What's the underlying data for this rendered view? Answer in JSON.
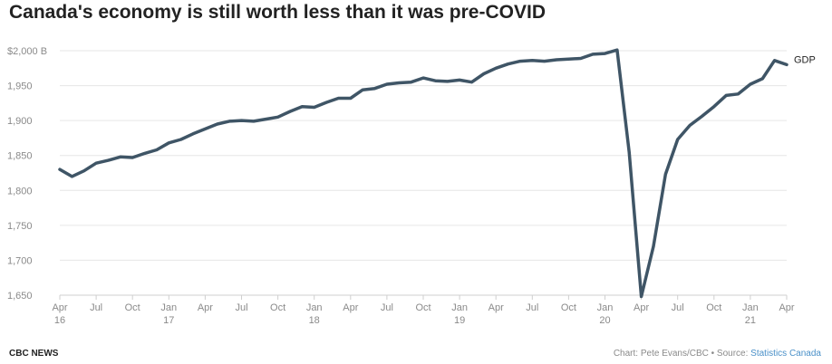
{
  "title": "Canada's economy is still worth less than it was pre-COVID",
  "footer": {
    "brand": "CBC NEWS",
    "credit": "Chart: Pete Evans/CBC • Source: ",
    "source": "Statistics Canada"
  },
  "colors": {
    "line": "#3f5566",
    "grid": "#e6e6e6",
    "axis": "#cfcfcf",
    "tick_text": "#8a8a8a",
    "source_link": "#4a90c8"
  },
  "chart_data": {
    "type": "line",
    "title": "Canada's economy is still worth less than it was pre-COVID",
    "xlabel": "",
    "ylabel": "",
    "ylim": [
      1650,
      2000
    ],
    "yticks": [
      {
        "value": 2000,
        "label": "$2,000 B"
      },
      {
        "value": 1950,
        "label": "1,950"
      },
      {
        "value": 1900,
        "label": "1,900"
      },
      {
        "value": 1850,
        "label": "1,850"
      },
      {
        "value": 1800,
        "label": "1,800"
      },
      {
        "value": 1750,
        "label": "1,750"
      },
      {
        "value": 1700,
        "label": "1,700"
      },
      {
        "value": 1650,
        "label": "1,650"
      }
    ],
    "xlim": [
      "2016-04",
      "2021-04"
    ],
    "xticks": [
      {
        "date": "2016-04",
        "label": "Apr",
        "year": "16"
      },
      {
        "date": "2016-07",
        "label": "Jul",
        "year": ""
      },
      {
        "date": "2016-10",
        "label": "Oct",
        "year": ""
      },
      {
        "date": "2017-01",
        "label": "Jan",
        "year": "17"
      },
      {
        "date": "2017-04",
        "label": "Apr",
        "year": ""
      },
      {
        "date": "2017-07",
        "label": "Jul",
        "year": ""
      },
      {
        "date": "2017-10",
        "label": "Oct",
        "year": ""
      },
      {
        "date": "2018-01",
        "label": "Jan",
        "year": "18"
      },
      {
        "date": "2018-04",
        "label": "Apr",
        "year": ""
      },
      {
        "date": "2018-07",
        "label": "Jul",
        "year": ""
      },
      {
        "date": "2018-10",
        "label": "Oct",
        "year": ""
      },
      {
        "date": "2019-01",
        "label": "Jan",
        "year": "19"
      },
      {
        "date": "2019-04",
        "label": "Apr",
        "year": ""
      },
      {
        "date": "2019-07",
        "label": "Jul",
        "year": ""
      },
      {
        "date": "2019-10",
        "label": "Oct",
        "year": ""
      },
      {
        "date": "2020-01",
        "label": "Jan",
        "year": "20"
      },
      {
        "date": "2020-04",
        "label": "Apr",
        "year": ""
      },
      {
        "date": "2020-07",
        "label": "Jul",
        "year": ""
      },
      {
        "date": "2020-10",
        "label": "Oct",
        "year": ""
      },
      {
        "date": "2021-01",
        "label": "Jan",
        "year": "21"
      },
      {
        "date": "2021-04",
        "label": "Apr",
        "year": ""
      }
    ],
    "grid": true,
    "series": [
      {
        "name": "GDP",
        "x": [
          "2016-04",
          "2016-05",
          "2016-06",
          "2016-07",
          "2016-08",
          "2016-09",
          "2016-10",
          "2016-11",
          "2016-12",
          "2017-01",
          "2017-02",
          "2017-03",
          "2017-04",
          "2017-05",
          "2017-06",
          "2017-07",
          "2017-08",
          "2017-09",
          "2017-10",
          "2017-11",
          "2017-12",
          "2018-01",
          "2018-02",
          "2018-03",
          "2018-04",
          "2018-05",
          "2018-06",
          "2018-07",
          "2018-08",
          "2018-09",
          "2018-10",
          "2018-11",
          "2018-12",
          "2019-01",
          "2019-02",
          "2019-03",
          "2019-04",
          "2019-05",
          "2019-06",
          "2019-07",
          "2019-08",
          "2019-09",
          "2019-10",
          "2019-11",
          "2019-12",
          "2020-01",
          "2020-02",
          "2020-03",
          "2020-04",
          "2020-05",
          "2020-06",
          "2020-07",
          "2020-08",
          "2020-09",
          "2020-10",
          "2020-11",
          "2020-12",
          "2021-01",
          "2021-02",
          "2021-03",
          "2021-04"
        ],
        "y": [
          1830,
          1820,
          1828,
          1839,
          1843,
          1848,
          1847,
          1853,
          1858,
          1868,
          1873,
          1881,
          1888,
          1895,
          1899,
          1900,
          1899,
          1902,
          1905,
          1913,
          1920,
          1919,
          1926,
          1932,
          1932,
          1944,
          1946,
          1952,
          1954,
          1955,
          1961,
          1957,
          1956,
          1958,
          1955,
          1967,
          1975,
          1981,
          1985,
          1986,
          1985,
          1987,
          1988,
          1989,
          1995,
          1996,
          2001,
          1855,
          1648,
          1720,
          1823,
          1873,
          1893,
          1906,
          1920,
          1936,
          1938,
          1952,
          1960,
          1986,
          1980
        ]
      }
    ]
  }
}
